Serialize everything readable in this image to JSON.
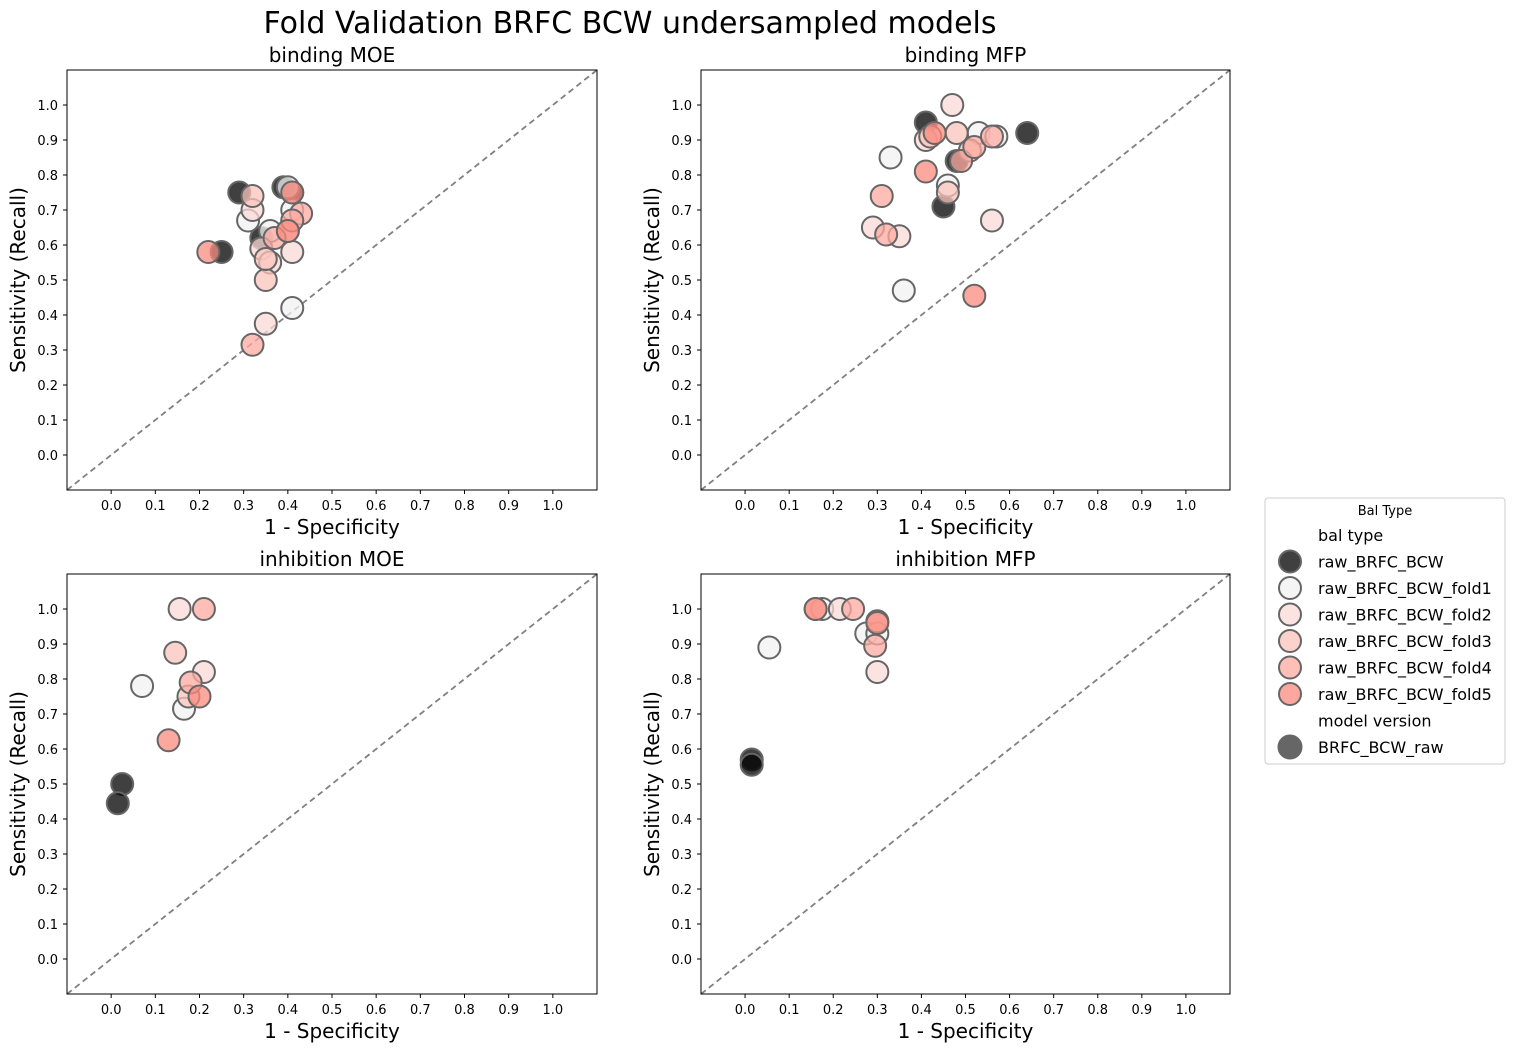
{
  "title": "Fold Validation BRFC BCW undersampled models",
  "legend": {
    "title": "Bal Type",
    "section1_title": "bal type",
    "section2_title": "model version",
    "entries": [
      {
        "name": "raw_BRFC_BCW",
        "color": "#000000"
      },
      {
        "name": "raw_BRFC_BCW_fold1",
        "color": "#f2f2f2"
      },
      {
        "name": "raw_BRFC_BCW_fold2",
        "color": "#f8d9d5"
      },
      {
        "name": "raw_BRFC_BCW_fold3",
        "color": "#fbc3bb"
      },
      {
        "name": "raw_BRFC_BCW_fold4",
        "color": "#fdaaa0"
      },
      {
        "name": "raw_BRFC_BCW_fold5",
        "color": "#fb8b7f"
      }
    ],
    "model_entries": [
      {
        "name": "BRFC_BCW_raw",
        "color": "#666666"
      }
    ]
  },
  "chart_data": [
    {
      "type": "scatter",
      "title": "binding MOE",
      "xlabel": "1 - Specificity",
      "ylabel": "Sensitivity (Recall)",
      "xlim": [
        -0.1,
        1.1
      ],
      "ylim": [
        -0.1,
        1.1
      ],
      "ticks": [
        "0.0",
        "0.1",
        "0.2",
        "0.3",
        "0.4",
        "0.5",
        "0.6",
        "0.7",
        "0.8",
        "0.9",
        "1.0"
      ],
      "diagonal": true,
      "series": [
        {
          "name": "raw_BRFC_BCW",
          "points": [
            [
              0.29,
              0.75
            ],
            [
              0.25,
              0.58
            ],
            [
              0.39,
              0.765
            ],
            [
              0.41,
              0.75
            ],
            [
              0.34,
              0.62
            ]
          ]
        },
        {
          "name": "raw_BRFC_BCW_fold1",
          "points": [
            [
              0.31,
              0.67
            ],
            [
              0.36,
              0.64
            ],
            [
              0.4,
              0.765
            ],
            [
              0.41,
              0.7
            ],
            [
              0.41,
              0.42
            ]
          ]
        },
        {
          "name": "raw_BRFC_BCW_fold2",
          "points": [
            [
              0.32,
              0.7
            ],
            [
              0.34,
              0.59
            ],
            [
              0.41,
              0.58
            ],
            [
              0.35,
              0.375
            ],
            [
              0.36,
              0.55
            ]
          ]
        },
        {
          "name": "raw_BRFC_BCW_fold3",
          "points": [
            [
              0.32,
              0.74
            ],
            [
              0.35,
              0.5
            ],
            [
              0.4,
              0.64
            ],
            [
              0.35,
              0.56
            ]
          ]
        },
        {
          "name": "raw_BRFC_BCW_fold4",
          "points": [
            [
              0.37,
              0.62
            ],
            [
              0.43,
              0.69
            ],
            [
              0.41,
              0.67
            ],
            [
              0.32,
              0.315
            ]
          ]
        },
        {
          "name": "raw_BRFC_BCW_fold5",
          "points": [
            [
              0.22,
              0.58
            ],
            [
              0.41,
              0.75
            ],
            [
              0.4,
              0.64
            ]
          ]
        }
      ]
    },
    {
      "type": "scatter",
      "title": "binding MFP",
      "xlabel": "1 - Specificity",
      "ylabel": "Sensitivity (Recall)",
      "xlim": [
        -0.1,
        1.1
      ],
      "ylim": [
        -0.1,
        1.1
      ],
      "ticks": [
        "0.0",
        "0.1",
        "0.2",
        "0.3",
        "0.4",
        "0.5",
        "0.6",
        "0.7",
        "0.8",
        "0.9",
        "1.0"
      ],
      "diagonal": true,
      "series": [
        {
          "name": "raw_BRFC_BCW",
          "points": [
            [
              0.41,
              0.95
            ],
            [
              0.45,
              0.71
            ],
            [
              0.48,
              0.84
            ],
            [
              0.64,
              0.92
            ]
          ]
        },
        {
          "name": "raw_BRFC_BCW_fold1",
          "points": [
            [
              0.33,
              0.85
            ],
            [
              0.36,
              0.47
            ],
            [
              0.46,
              0.77
            ],
            [
              0.53,
              0.92
            ],
            [
              0.57,
              0.91
            ]
          ]
        },
        {
          "name": "raw_BRFC_BCW_fold2",
          "points": [
            [
              0.29,
              0.65
            ],
            [
              0.35,
              0.625
            ],
            [
              0.47,
              1.0
            ],
            [
              0.56,
              0.67
            ],
            [
              0.41,
              0.9
            ]
          ]
        },
        {
          "name": "raw_BRFC_BCW_fold3",
          "points": [
            [
              0.42,
              0.91
            ],
            [
              0.48,
              0.92
            ],
            [
              0.46,
              0.75
            ],
            [
              0.51,
              0.87
            ]
          ]
        },
        {
          "name": "raw_BRFC_BCW_fold4",
          "points": [
            [
              0.31,
              0.74
            ],
            [
              0.32,
              0.63
            ],
            [
              0.49,
              0.84
            ],
            [
              0.52,
              0.88
            ],
            [
              0.56,
              0.91
            ]
          ]
        },
        {
          "name": "raw_BRFC_BCW_fold5",
          "points": [
            [
              0.41,
              0.81
            ],
            [
              0.43,
              0.92
            ],
            [
              0.52,
              0.455
            ]
          ]
        }
      ]
    },
    {
      "type": "scatter",
      "title": "inhibition MOE",
      "xlabel": "1 - Specificity",
      "ylabel": "Sensitivity (Recall)",
      "xlim": [
        -0.1,
        1.1
      ],
      "ylim": [
        -0.1,
        1.1
      ],
      "ticks": [
        "0.0",
        "0.1",
        "0.2",
        "0.3",
        "0.4",
        "0.5",
        "0.6",
        "0.7",
        "0.8",
        "0.9",
        "1.0"
      ],
      "diagonal": true,
      "series": [
        {
          "name": "raw_BRFC_BCW",
          "points": [
            [
              0.025,
              0.5
            ],
            [
              0.015,
              0.445
            ]
          ]
        },
        {
          "name": "raw_BRFC_BCW_fold1",
          "points": [
            [
              0.07,
              0.78
            ],
            [
              0.165,
              0.715
            ]
          ]
        },
        {
          "name": "raw_BRFC_BCW_fold2",
          "points": [
            [
              0.155,
              1.0
            ],
            [
              0.21,
              0.82
            ]
          ]
        },
        {
          "name": "raw_BRFC_BCW_fold3",
          "points": [
            [
              0.145,
              0.875
            ],
            [
              0.175,
              0.75
            ]
          ]
        },
        {
          "name": "raw_BRFC_BCW_fold4",
          "points": [
            [
              0.21,
              1.0
            ],
            [
              0.18,
              0.79
            ]
          ]
        },
        {
          "name": "raw_BRFC_BCW_fold5",
          "points": [
            [
              0.13,
              0.625
            ],
            [
              0.2,
              0.75
            ]
          ]
        }
      ]
    },
    {
      "type": "scatter",
      "title": "inhibition MFP",
      "xlabel": "1 - Specificity",
      "ylabel": "Sensitivity (Recall)",
      "xlim": [
        -0.1,
        1.1
      ],
      "ylim": [
        -0.1,
        1.1
      ],
      "ticks": [
        "0.0",
        "0.1",
        "0.2",
        "0.3",
        "0.4",
        "0.5",
        "0.6",
        "0.7",
        "0.8",
        "0.9",
        "1.0"
      ],
      "diagonal": true,
      "series": [
        {
          "name": "raw_BRFC_BCW",
          "points": [
            [
              0.015,
              0.57
            ],
            [
              0.015,
              0.555
            ]
          ]
        },
        {
          "name": "raw_BRFC_BCW_fold1",
          "points": [
            [
              0.055,
              0.89
            ],
            [
              0.175,
              1.0
            ],
            [
              0.275,
              0.93
            ],
            [
              0.3,
              0.93
            ]
          ]
        },
        {
          "name": "raw_BRFC_BCW_fold2",
          "points": [
            [
              0.215,
              1.0
            ],
            [
              0.3,
              0.82
            ]
          ]
        },
        {
          "name": "raw_BRFC_BCW_fold3",
          "points": [
            [
              0.16,
              1.0
            ],
            [
              0.3,
              0.965
            ]
          ]
        },
        {
          "name": "raw_BRFC_BCW_fold4",
          "points": [
            [
              0.245,
              1.0
            ],
            [
              0.295,
              0.895
            ]
          ]
        },
        {
          "name": "raw_BRFC_BCW_fold5",
          "points": [
            [
              0.16,
              1.0
            ],
            [
              0.3,
              0.96
            ]
          ]
        }
      ]
    }
  ]
}
